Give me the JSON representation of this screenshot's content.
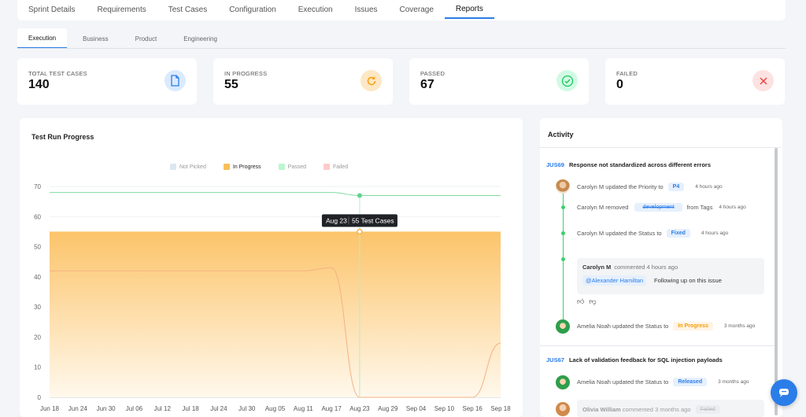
{
  "top_tabs": [
    "Sprint Details",
    "Requirements",
    "Test Cases",
    "Configuration",
    "Execution",
    "Issues",
    "Coverage",
    "Reports"
  ],
  "sub_tabs": [
    "Execution",
    "Business",
    "Product",
    "Engineering"
  ],
  "cards": [
    {
      "label": "TOTAL TEST CASES",
      "value": "140",
      "icon": "document-icon",
      "color": "#2b7de9"
    },
    {
      "label": "IN PROGRESS",
      "value": "55",
      "icon": "refresh-icon",
      "color": "#f59e0b"
    },
    {
      "label": "PASSED",
      "value": "67",
      "icon": "check-circle-icon",
      "color": "#22c55e"
    },
    {
      "label": "FAILED",
      "value": "0",
      "icon": "close-icon",
      "color": "#ef4444"
    }
  ],
  "chart_data": {
    "type": "area",
    "title": "Test Run Progress",
    "categories": [
      "Jun 18",
      "Jun 24",
      "Jun 30",
      "Jul 06",
      "Jul 12",
      "Jul 18",
      "Jul 24",
      "Jul 30",
      "Aug 05",
      "Aug 11",
      "Aug 17",
      "Aug 23",
      "Aug 29",
      "Sep 04",
      "Sep 10",
      "Sep 16",
      "Sep 18"
    ],
    "y_ticks": [
      0,
      10,
      20,
      30,
      40,
      50,
      60,
      70
    ],
    "ylim": [
      0,
      70
    ],
    "legend": [
      "Not Picked",
      "In Progress",
      "Passed",
      "Failed"
    ],
    "legend_placement": "top-center",
    "series": [
      {
        "name": "Not Picked",
        "color": "#dbe7f0",
        "values": [
          42,
          42,
          42,
          42,
          42,
          42,
          42,
          42,
          42,
          42,
          43,
          0,
          0,
          0,
          0,
          0,
          18
        ]
      },
      {
        "name": "In Progress",
        "color": "#fbbf5a",
        "values": [
          55,
          55,
          55,
          55,
          55,
          55,
          55,
          55,
          55,
          55,
          55,
          55,
          55,
          55,
          55,
          55,
          55
        ]
      },
      {
        "name": "Passed",
        "color": "#86efac",
        "values": [
          68,
          68,
          68,
          68,
          68,
          68,
          68,
          68,
          68,
          68,
          68,
          67,
          67,
          67,
          67,
          67,
          67
        ]
      },
      {
        "name": "Failed",
        "color": "#fca5a5",
        "values": [
          0,
          0,
          0,
          0,
          0,
          0,
          0,
          0,
          0,
          0,
          0,
          0,
          0,
          0,
          0,
          0,
          0
        ]
      }
    ],
    "tooltip": {
      "date": "Aug 23",
      "text": "55 Test Cases"
    }
  },
  "activity": {
    "title": "Activity",
    "issue1": {
      "key": "JUS69",
      "title": "Response not standardized across different errors"
    },
    "entries": [
      {
        "who": "Carolyn M",
        "action": "updated the Priority to",
        "chip": "P4",
        "after": "",
        "time": "4 hours ago"
      },
      {
        "who": "Carolyn M",
        "action": "removed",
        "chip": "development",
        "after": "from Tags",
        "time": "4 hours ago"
      },
      {
        "who": "Carolyn M",
        "action": "updated the Status to",
        "chip": "Fixed",
        "after": "",
        "time": "4 hours ago"
      }
    ],
    "comment": {
      "who": "Carolyn M",
      "meta": "commented 4 hours ago",
      "mention": "@Alexander Hamiltan",
      "text": "Following up on this issue"
    },
    "entry4": {
      "who": "Amelia Noah",
      "action": "updated the Status to",
      "chip": "In Progress",
      "time": "3 months ago"
    },
    "issue2": {
      "key": "JUS67",
      "title": "Lack of validation feedback for SQL injection payloads"
    },
    "entry5": {
      "who": "Amelia Noah",
      "action": "updated the Status to",
      "chip": "Released",
      "time": "3 months ago"
    },
    "entry6": {
      "who": "Olivia William",
      "action": "commented 3 months ago",
      "chip": "Failed"
    }
  }
}
